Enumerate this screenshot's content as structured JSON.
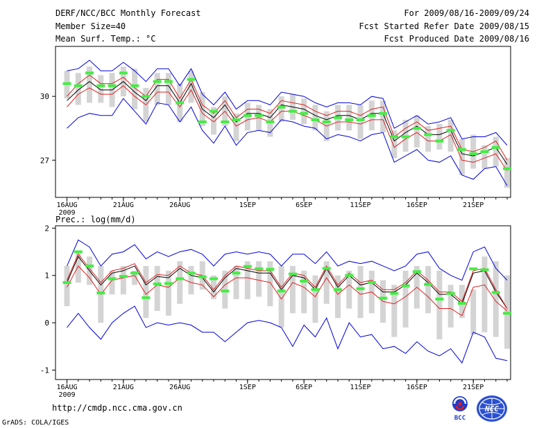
{
  "header": {
    "left": [
      "DERF/NCC/BCC Monthly Forecast",
      "Member Size=40",
      "Mean Surf. Temp.: °C"
    ],
    "right": [
      "For 2009/08/16-2009/09/24",
      "Fcst Started Refer Date 2009/08/15",
      "Fcst Produced Date 2009/08/16"
    ]
  },
  "precip_label": "Prec.: log(mm/d)",
  "footer": {
    "url": "http://cmdp.ncc.cma.gov.cn",
    "grads": "GrADS: COLA/IGES",
    "logo_bcc": "BCC",
    "logo_ncc": "NCC"
  },
  "colors": {
    "box": "#d4d4d4",
    "median": "#44ee44",
    "mean": "#000000",
    "spread": "#dd2222",
    "extreme": "#0000dd"
  },
  "chart_data": [
    {
      "type": "line",
      "name": "temperature",
      "title": "Mean Surf. Temp.: °C",
      "ylabel": "°C",
      "ylim": [
        25.25,
        32.35
      ],
      "yticks": [
        27,
        30
      ],
      "x_tick_labels": [
        "16AUG",
        "21AUG",
        "26AUG",
        "1SEP",
        "6SEP",
        "11SEP",
        "16SEP",
        "21SEP"
      ],
      "x_tick_days": [
        1,
        6,
        11,
        17,
        22,
        27,
        32,
        37
      ],
      "x_sublabel": "2009",
      "days": [
        1,
        2,
        3,
        4,
        5,
        6,
        7,
        8,
        9,
        10,
        11,
        12,
        13,
        14,
        15,
        16,
        17,
        18,
        19,
        20,
        21,
        22,
        23,
        24,
        25,
        26,
        27,
        28,
        29,
        30,
        31,
        32,
        33,
        34,
        35,
        36,
        37,
        38,
        39,
        40
      ],
      "box_top": [
        31.2,
        31.1,
        31.4,
        31.0,
        31.1,
        31.4,
        31.3,
        30.4,
        31.1,
        31.1,
        30.6,
        31.2,
        30.2,
        29.5,
        30.0,
        29.2,
        29.7,
        29.6,
        29.4,
        30.0,
        30.1,
        29.9,
        29.6,
        29.3,
        29.6,
        29.6,
        29.6,
        29.8,
        29.8,
        28.4,
        28.9,
        29.1,
        28.6,
        28.7,
        28.9,
        28.0,
        28.2,
        27.7,
        28.1,
        27.1
      ],
      "box_bottom": [
        29.9,
        29.6,
        29.7,
        29.7,
        29.5,
        30.0,
        29.4,
        28.8,
        29.6,
        29.6,
        28.8,
        29.7,
        28.6,
        28.2,
        28.6,
        27.9,
        28.4,
        28.4,
        28.1,
        28.8,
        28.9,
        28.7,
        28.4,
        27.9,
        28.4,
        28.4,
        28.0,
        28.4,
        28.3,
        27.1,
        27.4,
        27.6,
        27.4,
        27.5,
        27.4,
        26.3,
        26.6,
        26.6,
        26.7,
        25.7
      ],
      "series": [
        {
          "name": "ensemble median",
          "values": [
            30.6,
            30.5,
            31.1,
            30.5,
            30.5,
            31.1,
            30.5,
            30.0,
            30.7,
            30.7,
            29.7,
            30.8,
            28.8,
            29.3,
            28.8,
            28.9,
            29.1,
            29.1,
            28.8,
            29.5,
            29.3,
            29.2,
            28.9,
            28.8,
            29.0,
            28.9,
            28.9,
            29.1,
            29.2,
            28.1,
            28.1,
            28.5,
            28.2,
            27.9,
            28.4,
            27.5,
            27.3,
            27.4,
            27.6,
            26.6
          ]
        },
        {
          "name": "ensemble mean",
          "values": [
            29.8,
            30.3,
            30.7,
            30.3,
            30.3,
            30.7,
            30.2,
            29.8,
            30.5,
            30.5,
            29.7,
            30.6,
            29.4,
            29.0,
            29.6,
            28.8,
            29.2,
            29.2,
            29.0,
            29.6,
            29.5,
            29.4,
            29.1,
            28.9,
            29.1,
            29.1,
            28.9,
            29.2,
            29.2,
            27.9,
            28.3,
            28.6,
            28.2,
            28.2,
            28.4,
            27.3,
            27.2,
            27.4,
            27.6,
            26.8
          ]
        },
        {
          "name": "upper spread",
          "values": [
            30.0,
            30.6,
            31.0,
            30.6,
            30.6,
            30.9,
            30.4,
            30.0,
            30.8,
            30.8,
            29.9,
            30.8,
            29.6,
            29.2,
            29.8,
            29.0,
            29.4,
            29.4,
            29.2,
            29.8,
            29.7,
            29.6,
            29.3,
            29.1,
            29.3,
            29.3,
            29.1,
            29.4,
            29.5,
            28.1,
            28.5,
            28.8,
            28.4,
            28.5,
            28.6,
            27.5,
            27.4,
            27.6,
            27.9,
            27.0
          ]
        },
        {
          "name": "lower spread",
          "values": [
            29.5,
            30.1,
            30.4,
            30.1,
            30.1,
            30.5,
            30.0,
            29.6,
            30.2,
            30.2,
            29.5,
            30.3,
            29.2,
            28.8,
            29.3,
            28.6,
            28.9,
            29.0,
            28.8,
            29.3,
            29.3,
            29.1,
            28.9,
            28.6,
            28.8,
            28.8,
            28.7,
            28.9,
            28.9,
            27.6,
            28.0,
            28.3,
            27.9,
            27.9,
            28.2,
            27.0,
            26.9,
            27.1,
            27.3,
            26.5
          ]
        },
        {
          "name": "maximum",
          "values": [
            31.2,
            31.3,
            31.7,
            31.2,
            31.2,
            31.6,
            31.2,
            30.7,
            31.3,
            31.3,
            30.5,
            31.3,
            30.1,
            29.6,
            30.2,
            29.4,
            29.8,
            29.8,
            29.6,
            30.2,
            30.1,
            30.0,
            29.7,
            29.5,
            29.7,
            29.7,
            29.6,
            30.0,
            29.9,
            28.5,
            28.8,
            29.1,
            28.7,
            28.8,
            29.0,
            28.0,
            28.1,
            28.1,
            28.3,
            27.7
          ]
        },
        {
          "name": "minimum",
          "values": [
            28.5,
            29.0,
            29.2,
            29.1,
            29.1,
            29.9,
            29.3,
            28.7,
            29.7,
            29.6,
            28.8,
            29.5,
            28.4,
            27.8,
            28.6,
            27.7,
            28.3,
            28.4,
            28.3,
            28.9,
            28.8,
            28.6,
            28.5,
            28.0,
            28.2,
            28.1,
            27.9,
            28.2,
            28.3,
            26.9,
            27.2,
            27.5,
            27.0,
            26.9,
            27.2,
            26.3,
            26.1,
            26.6,
            26.7,
            25.8
          ]
        }
      ]
    },
    {
      "type": "line",
      "name": "precipitation",
      "title": "Prec.: log(mm/d)",
      "ylabel": "log(mm/d)",
      "ylim": [
        -1.2,
        2.05
      ],
      "yticks": [
        -1,
        0,
        1,
        2
      ],
      "x_tick_labels": [
        "16AUG",
        "21AUG",
        "26AUG",
        "1SEP",
        "6SEP",
        "11SEP",
        "16SEP",
        "21SEP"
      ],
      "x_tick_days": [
        1,
        6,
        11,
        17,
        22,
        27,
        32,
        37
      ],
      "x_sublabel": "2009",
      "days": [
        1,
        2,
        3,
        4,
        5,
        6,
        7,
        8,
        9,
        10,
        11,
        12,
        13,
        14,
        15,
        16,
        17,
        18,
        19,
        20,
        21,
        22,
        23,
        24,
        25,
        26,
        27,
        28,
        29,
        30,
        31,
        32,
        33,
        34,
        35,
        36,
        37,
        38,
        39,
        40
      ],
      "box_top": [
        1.2,
        1.5,
        1.4,
        1.2,
        1.1,
        1.2,
        1.1,
        1.2,
        1.2,
        1.1,
        1.3,
        1.2,
        1.3,
        1.0,
        1.1,
        1.2,
        1.3,
        1.3,
        1.3,
        1.2,
        1.2,
        1.1,
        1.0,
        1.3,
        1.0,
        1.1,
        1.2,
        1.1,
        0.9,
        0.8,
        1.1,
        1.2,
        1.2,
        1.1,
        0.8,
        0.8,
        0.7,
        1.4,
        1.3,
        1.0
      ],
      "box_bottom": [
        0.35,
        0.85,
        0.8,
        0.0,
        0.6,
        0.6,
        0.8,
        0.1,
        0.25,
        0.15,
        0.4,
        0.6,
        0.7,
        0.5,
        0.3,
        0.5,
        0.5,
        0.55,
        0.35,
        -0.1,
        0.2,
        0.2,
        0.0,
        0.4,
        0.1,
        0.3,
        0.1,
        0.2,
        0.0,
        -0.3,
        -0.1,
        0.3,
        0.2,
        -0.35,
        -0.1,
        0.1,
        -0.25,
        -0.2,
        -0.3,
        -0.55
      ],
      "series": [
        {
          "name": "ensemble median",
          "values": [
            0.85,
            1.5,
            1.2,
            0.63,
            0.93,
            0.98,
            1.05,
            0.53,
            0.82,
            0.83,
            0.93,
            1.05,
            0.97,
            0.93,
            0.67,
            1.05,
            1.19,
            1.14,
            1.13,
            0.67,
            1.03,
            0.88,
            0.7,
            1.15,
            0.7,
            1.0,
            0.72,
            0.85,
            0.52,
            0.62,
            0.78,
            1.08,
            0.81,
            0.5,
            0.62,
            0.41,
            1.14,
            1.12,
            0.64,
            0.2
          ]
        },
        {
          "name": "ensemble mean",
          "values": [
            0.85,
            1.4,
            1.1,
            0.8,
            1.05,
            1.1,
            1.2,
            0.8,
            0.98,
            0.95,
            1.15,
            1.0,
            0.95,
            0.65,
            0.95,
            1.15,
            1.1,
            1.05,
            1.05,
            0.7,
            1.0,
            0.95,
            0.7,
            1.15,
            0.75,
            1.0,
            0.8,
            0.85,
            0.65,
            0.65,
            0.8,
            1.05,
            0.85,
            0.6,
            0.6,
            0.4,
            1.05,
            1.1,
            0.65,
            0.3
          ]
        },
        {
          "name": "upper spread",
          "values": [
            0.9,
            1.45,
            1.15,
            0.85,
            1.1,
            1.15,
            1.25,
            0.85,
            1.02,
            1.0,
            1.2,
            1.05,
            1.0,
            0.7,
            1.0,
            1.2,
            1.15,
            1.1,
            1.1,
            0.75,
            1.05,
            1.0,
            0.75,
            1.2,
            0.8,
            1.05,
            0.85,
            0.9,
            0.7,
            0.7,
            0.85,
            1.1,
            0.9,
            0.65,
            0.65,
            0.45,
            1.1,
            1.15,
            0.7,
            0.3
          ]
        },
        {
          "name": "lower spread",
          "values": [
            0.75,
            1.2,
            0.95,
            0.6,
            0.9,
            0.95,
            1.0,
            0.6,
            0.8,
            0.75,
            0.95,
            0.85,
            0.8,
            0.55,
            0.8,
            0.95,
            0.95,
            0.9,
            0.85,
            0.5,
            0.85,
            0.75,
            0.55,
            0.95,
            0.6,
            0.8,
            0.6,
            0.65,
            0.45,
            0.4,
            0.55,
            0.75,
            0.55,
            0.3,
            0.3,
            0.15,
            0.75,
            0.8,
            0.45,
            0.25
          ]
        },
        {
          "name": "maximum",
          "values": [
            1.2,
            1.75,
            1.6,
            1.2,
            1.45,
            1.5,
            1.65,
            1.35,
            1.5,
            1.4,
            1.5,
            1.55,
            1.45,
            1.2,
            1.45,
            1.5,
            1.45,
            1.5,
            1.45,
            1.2,
            1.45,
            1.45,
            1.25,
            1.5,
            1.2,
            1.3,
            1.25,
            1.3,
            1.2,
            1.1,
            1.2,
            1.45,
            1.5,
            1.15,
            1.0,
            0.9,
            1.5,
            1.6,
            1.15,
            0.9
          ]
        },
        {
          "name": "minimum",
          "values": [
            -0.1,
            0.2,
            -0.1,
            -0.35,
            0.0,
            0.2,
            0.35,
            -0.1,
            0.0,
            -0.05,
            0.0,
            -0.05,
            -0.2,
            -0.2,
            -0.4,
            -0.2,
            0.0,
            0.05,
            0.0,
            -0.1,
            -0.5,
            -0.05,
            -0.3,
            0.1,
            -0.55,
            0.0,
            -0.3,
            -0.25,
            -0.55,
            -0.5,
            -0.65,
            -0.4,
            -0.6,
            -0.7,
            -0.55,
            -0.85,
            -0.2,
            -0.3,
            -0.75,
            -0.8
          ]
        }
      ]
    }
  ]
}
